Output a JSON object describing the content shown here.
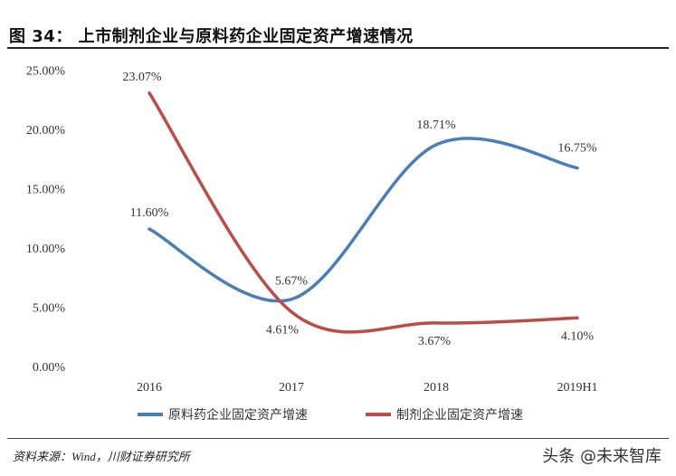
{
  "title": "图 34： 上市制剂企业与原料药企业固定资产增速情况",
  "source": "资料来源：Wind，川财证券研究所",
  "watermark": "头条 @未来智库",
  "chart_data": {
    "type": "line",
    "categories": [
      "2016",
      "2017",
      "2018",
      "2019H1"
    ],
    "y_tick_labels": [
      "0.00%",
      "5.00%",
      "10.00%",
      "15.00%",
      "20.00%",
      "25.00%"
    ],
    "ylim": [
      0,
      25
    ],
    "grid": false,
    "legend_position": "bottom",
    "series": [
      {
        "name": "原料药企业固定资产增速",
        "color": "#4A7EBB",
        "values": [
          11.6,
          5.67,
          18.71,
          16.75
        ],
        "labels": [
          "11.60%",
          "5.67%",
          "18.71%",
          "16.75%"
        ]
      },
      {
        "name": "制剂企业固定资产增速",
        "color": "#BE4B48",
        "values": [
          23.07,
          4.61,
          3.67,
          4.1
        ],
        "labels": [
          "23.07%",
          "4.61%",
          "3.67%",
          "4.10%"
        ]
      }
    ]
  }
}
